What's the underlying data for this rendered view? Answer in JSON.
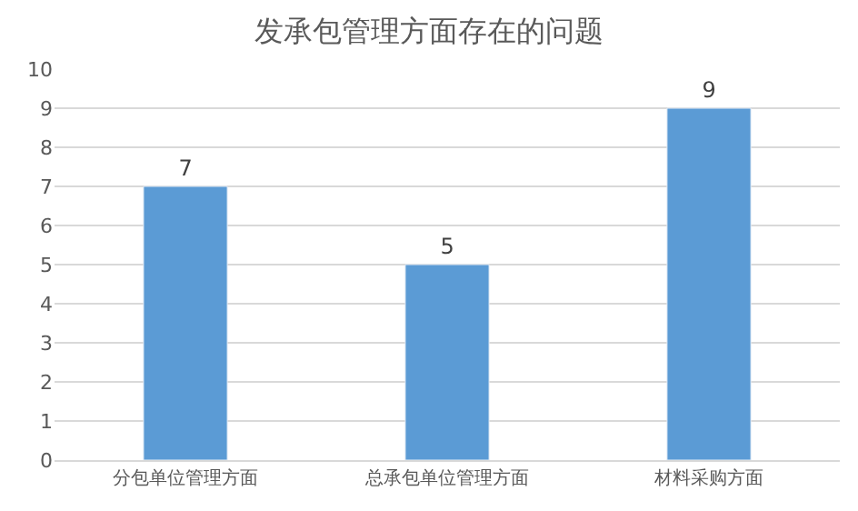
{
  "chart_data": {
    "type": "bar",
    "title": "发承包管理方面存在的问题",
    "categories": [
      "分包单位管理方面",
      "总承包单位管理方面",
      "材料采购方面"
    ],
    "values": [
      7,
      5,
      9
    ],
    "color": "#5b9bd5",
    "ylim": [
      0,
      10
    ],
    "yticks": [
      0,
      1,
      2,
      3,
      4,
      5,
      6,
      7,
      8,
      9,
      10
    ],
    "grid": "y",
    "data_labels": true
  }
}
